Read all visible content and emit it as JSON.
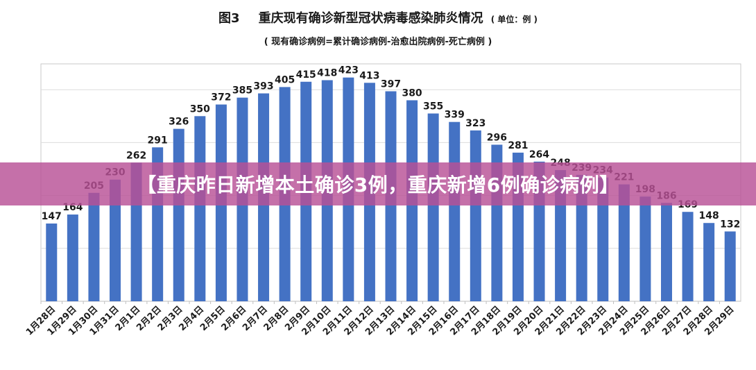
{
  "header": {
    "fig_label": "图3",
    "title": "重庆现有确诊新型冠状病毒感染肺炎情况",
    "unit": "( 单位：例 )",
    "subtitle": "( 现有确诊病例=累计确诊病例-治愈出院病例-死亡病例 )"
  },
  "overlay": {
    "text": "【重庆昨日新增本土确诊3例，重庆新增6例确诊病例】"
  },
  "chart_data": {
    "type": "bar",
    "title": "重庆现有确诊新型冠状病毒感染肺炎情况",
    "subtitle": "( 现有确诊病例=累计确诊病例-治愈出院病例-死亡病例 )",
    "unit": "( 单位：例 )",
    "categories": [
      "1月28日",
      "1月29日",
      "1月30日",
      "1月31日",
      "2月1日",
      "2月2日",
      "2月3日",
      "2月4日",
      "2月5日",
      "2月6日",
      "2月7日",
      "2月8日",
      "2月9日",
      "2月10日",
      "2月11日",
      "2月12日",
      "2月13日",
      "2月14日",
      "2月15日",
      "2月16日",
      "2月17日",
      "2月18日",
      "2月19日",
      "2月20日",
      "2月21日",
      "2月22日",
      "2月23日",
      "2月24日",
      "2月25日",
      "2月26日",
      "2月27日",
      "2月28日",
      "2月29日"
    ],
    "values": [
      147,
      164,
      205,
      230,
      262,
      291,
      326,
      350,
      372,
      385,
      393,
      405,
      415,
      418,
      423,
      413,
      397,
      380,
      355,
      339,
      323,
      296,
      281,
      264,
      248,
      239,
      234,
      221,
      198,
      186,
      169,
      148,
      132
    ],
    "ylim": [
      0,
      500
    ],
    "grid": true,
    "bar_color": "#4472c4",
    "label_color": "#1a1a1a",
    "banner_color": "#b85096"
  }
}
